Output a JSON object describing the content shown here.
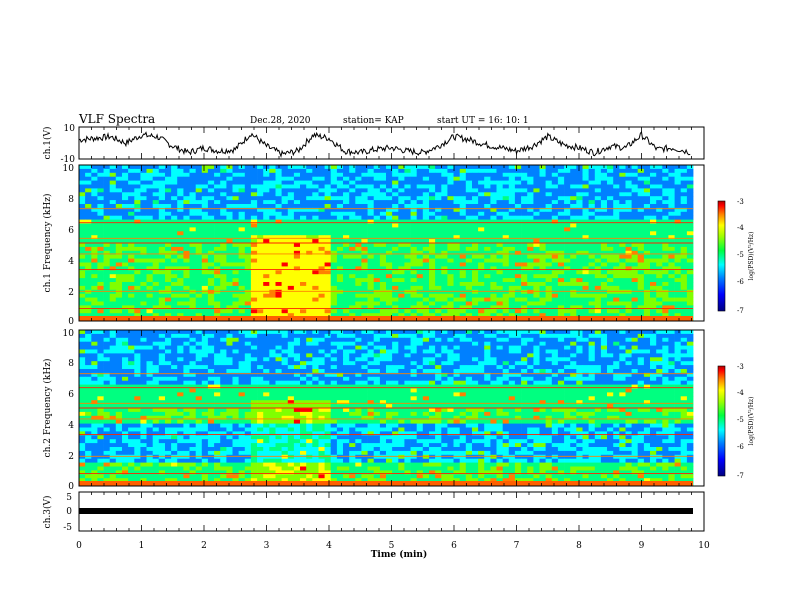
{
  "header": {
    "title": "VLF Spectra",
    "date": "Dec.28, 2020",
    "station": "station= KAP",
    "start_ut": "start  UT  =   16: 10: 1"
  },
  "chart_data": [
    {
      "type": "line",
      "panel": "ch1-waveform",
      "ylabel": "ch.1(V)",
      "ylim": [
        -10,
        10
      ],
      "yticks": [
        "10",
        "-10"
      ],
      "xlim": [
        0,
        10
      ],
      "x": [
        0,
        0.25,
        0.5,
        0.75,
        1.0,
        1.25,
        1.5,
        1.75,
        2.0,
        2.25,
        2.5,
        2.75,
        3.0,
        3.25,
        3.5,
        3.75,
        4.0,
        4.25,
        4.5,
        4.75,
        5.0,
        5.25,
        5.5,
        5.75,
        6.0,
        6.25,
        6.5,
        6.75,
        7.0,
        7.25,
        7.5,
        7.75,
        8.0,
        8.25,
        8.5,
        8.75,
        9.0,
        9.25,
        9.5,
        9.8
      ],
      "values": [
        2,
        3,
        4,
        0,
        5,
        4,
        -2,
        -6,
        -3,
        -5,
        -4,
        6,
        -2,
        -7,
        -5,
        5,
        3,
        -5,
        -6,
        -4,
        -3,
        -5,
        -6,
        -2,
        4,
        2,
        -1,
        -3,
        -5,
        -2,
        4,
        -1,
        -3,
        -6,
        -2,
        -3,
        5,
        -4,
        -3,
        -6
      ]
    },
    {
      "type": "heatmap",
      "panel": "ch1-spectrogram",
      "ylabel": "ch.1 Frequency (kHz)",
      "ylim": [
        0,
        10
      ],
      "yticks": [
        "0",
        "2",
        "4",
        "6",
        "8",
        "10"
      ],
      "xlim": [
        0,
        10
      ],
      "colorbar": {
        "label": "log(PSD)(V²/Hz)",
        "range": [
          -7,
          -3
        ],
        "ticks": [
          "-3",
          "-4",
          "-5",
          "-6",
          "-7"
        ]
      }
    },
    {
      "type": "heatmap",
      "panel": "ch2-spectrogram",
      "ylabel": "ch.2 Frequency (kHz)",
      "ylim": [
        0,
        10
      ],
      "yticks": [
        "0",
        "2",
        "4",
        "6",
        "8",
        "10"
      ],
      "xlim": [
        0,
        10
      ],
      "colorbar": {
        "label": "log(PSD)(V²/Hz)",
        "range": [
          -7,
          -3
        ],
        "ticks": [
          "-3",
          "-4",
          "-5",
          "-6",
          "-7"
        ]
      }
    },
    {
      "type": "line",
      "panel": "ch3-waveform",
      "ylabel": "ch.3(V)",
      "ylim": [
        -5,
        5
      ],
      "yticks": [
        "5",
        "0",
        "-5"
      ],
      "xlim": [
        0,
        10
      ],
      "x": [
        0,
        9.8
      ],
      "values": [
        -1,
        -1
      ]
    }
  ],
  "x_axis": {
    "label": "Time  (min)",
    "ticks": [
      "0",
      "1",
      "2",
      "3",
      "4",
      "5",
      "6",
      "7",
      "8",
      "9",
      "10"
    ]
  },
  "colors": {
    "cmap": [
      "#000080",
      "#0000ff",
      "#0080ff",
      "#00ffff",
      "#00ff80",
      "#80ff00",
      "#ffff00",
      "#ff8000",
      "#ff0000",
      "#800000"
    ]
  }
}
